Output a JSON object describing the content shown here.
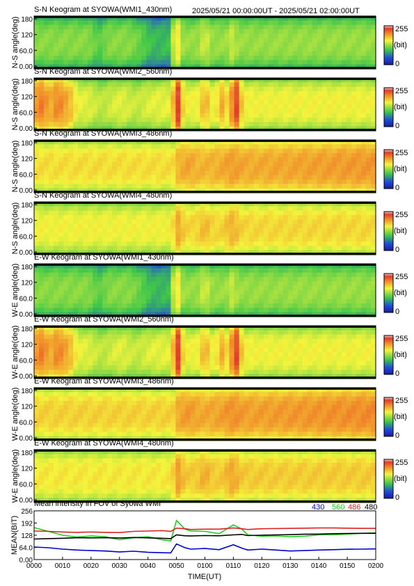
{
  "header": {
    "time_range": "2025/05/21 00:00:00UT - 2025/05/21 02:00:00UT"
  },
  "colorbar": {
    "max_label": "255",
    "unit_label": "(bit)",
    "min_label": "0"
  },
  "keograms": [
    {
      "title": "S-N Keogram at SYOWA(WMI1_430nm)",
      "ylabel": "N-S angle(deg)",
      "yticks": [
        "180",
        "120",
        "60.0",
        "0.00"
      ],
      "base": 0.5,
      "profile": "n430"
    },
    {
      "title": "S-N Keogram at SYOWA(WMI2_560nm)",
      "ylabel": "N-S angle(deg)",
      "yticks": [
        "180",
        "120",
        "60.0",
        "0.00"
      ],
      "base": 0.62,
      "profile": "n560"
    },
    {
      "title": "S-N Keogram at SYOWA(WMI3_486nm)",
      "ylabel": "N-S angle(deg)",
      "yticks": [
        "180",
        "120",
        "60.0",
        "0.00"
      ],
      "base": 0.66,
      "profile": "n486"
    },
    {
      "title": "S-N Keogram at SYOWA(WMI4_480nm)",
      "ylabel": "N-S angle(deg)",
      "yticks": [
        "180",
        "120",
        "60.0",
        "0.00"
      ],
      "base": 0.62,
      "profile": "n480"
    },
    {
      "title": "E-W Keogram at SYOWA(WMI1_430nm)",
      "ylabel": "W-E angle(deg)",
      "yticks": [
        "180",
        "120",
        "60.0",
        "0.00"
      ],
      "base": 0.5,
      "profile": "n430"
    },
    {
      "title": "E-W Keogram at SYOWA(WMI2_560nm)",
      "ylabel": "W-E angle(deg)",
      "yticks": [
        "180",
        "120",
        "60.0",
        "0.00"
      ],
      "base": 0.62,
      "profile": "n560"
    },
    {
      "title": "E-W Keogram at SYOWA(WMI3_486nm)",
      "ylabel": "W-E angle(deg)",
      "yticks": [
        "180",
        "120",
        "60.0",
        "0.00"
      ],
      "base": 0.68,
      "profile": "n486"
    },
    {
      "title": "E-W Keogram at SYOWA(WMI4_480nm)",
      "ylabel": "W-E angle(deg)",
      "yticks": [
        "180",
        "120",
        "60.0",
        "0.00"
      ],
      "base": 0.64,
      "profile": "n480"
    }
  ],
  "chart_data": {
    "type": "line",
    "title": "Mean intensity in FOV of Syowa WMI",
    "xlabel": "TIME(UT)",
    "ylabel": "MEAN(BIT)",
    "ylim": [
      0,
      256
    ],
    "yticks": [
      "256",
      "192",
      "128",
      "64.0",
      "0.00"
    ],
    "x_tick_labels": [
      "0000",
      "0010",
      "0020",
      "0030",
      "0040",
      "0050",
      "0100",
      "0110",
      "0120",
      "0130",
      "0140",
      "0150",
      "0200"
    ],
    "x": [
      0,
      5,
      10,
      15,
      20,
      25,
      30,
      35,
      40,
      45,
      48,
      50,
      53,
      55,
      60,
      65,
      70,
      73,
      75,
      80,
      85,
      90,
      95,
      100,
      105,
      110,
      115,
      120
    ],
    "series": [
      {
        "name": "430",
        "color": "#0000cc",
        "values": [
          66,
          62,
          55,
          50,
          47,
          45,
          40,
          44,
          38,
          36,
          35,
          82,
          62,
          55,
          58,
          52,
          78,
          60,
          50,
          55,
          50,
          45,
          47,
          50,
          52,
          54,
          55,
          56
        ]
      },
      {
        "name": "560",
        "color": "#22cc22",
        "values": [
          168,
          148,
          128,
          118,
          124,
          120,
          104,
          115,
          120,
          104,
          98,
          205,
          160,
          150,
          148,
          136,
          182,
          160,
          130,
          122,
          124,
          120,
          123,
          130,
          130,
          134,
          138,
          140
        ]
      },
      {
        "name": "486",
        "color": "#dd2222",
        "values": [
          150,
          148,
          145,
          143,
          145,
          143,
          142,
          148,
          150,
          152,
          148,
          165,
          162,
          158,
          160,
          160,
          166,
          162,
          158,
          162,
          163,
          164,
          165,
          166,
          166,
          165,
          164,
          164
        ]
      },
      {
        "name": "480",
        "color": "#000000",
        "values": [
          108,
          110,
          112,
          115,
          114,
          115,
          113,
          116,
          114,
          112,
          110,
          130,
          125,
          124,
          126,
          125,
          130,
          132,
          126,
          128,
          130,
          131,
          133,
          134,
          136,
          137,
          138,
          138
        ]
      }
    ]
  }
}
